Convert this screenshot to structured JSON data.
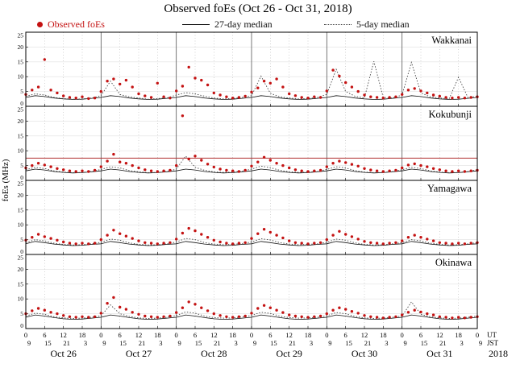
{
  "title": "Observed foEs (Oct 26 - Oct 31, 2018)",
  "legend": {
    "observed": "Observed foEs",
    "median27": "27-day median",
    "median5": "5-day median"
  },
  "colors": {
    "observed": "#c41212",
    "median27": "#111111",
    "median5": "#444444",
    "threshold": "#b03030",
    "grid": "#e0e0e0",
    "dayline": "#555555",
    "subline": "#aaaaaa"
  },
  "y_axis": {
    "label": "foEs (MHz)",
    "ticks": [
      0,
      5,
      10,
      15,
      20,
      25
    ],
    "max": 25
  },
  "x_axis": {
    "hours_total": 144,
    "tick_step_hours": 6,
    "ut_tick_labels": [
      "0",
      "6",
      "12",
      "18",
      "0",
      "6",
      "12",
      "18",
      "0",
      "6",
      "12",
      "18",
      "0",
      "6",
      "12",
      "18",
      "0",
      "6",
      "12",
      "18",
      "0",
      "6",
      "12",
      "18",
      "0"
    ],
    "jst_tick_labels": [
      "9",
      "15",
      "21",
      "3",
      "9",
      "15",
      "21",
      "3",
      "9",
      "15",
      "21",
      "3",
      "9",
      "15",
      "21",
      "3",
      "9",
      "15",
      "21",
      "3",
      "9",
      "15",
      "21",
      "3",
      "9"
    ],
    "day_labels": [
      "Oct 26",
      "Oct 27",
      "Oct 28",
      "Oct 29",
      "Oct 30",
      "Oct 31"
    ],
    "right_labels": [
      "UT",
      "JST"
    ],
    "year": "2018"
  },
  "chart_data": {
    "type": "scatter",
    "units": "MHz",
    "ylim": [
      0,
      25
    ],
    "x_units": "hours UT from Oct 26 2018 00:00",
    "stations": [
      {
        "name": "Wakkanai",
        "observed": {
          "start": 0,
          "step": 2,
          "values": [
            4.0,
            5.5,
            6.5,
            15.8,
            5.5,
            4.5,
            3.5,
            3.0,
            2.8,
            3.2,
            2.6,
            2.8,
            5.0,
            8.5,
            9.2,
            7.5,
            8.8,
            6.5,
            4.2,
            3.5,
            3.0,
            7.8,
            3.2,
            2.8,
            5.2,
            6.8,
            13.2,
            9.5,
            8.8,
            7.2,
            4.5,
            3.8,
            3.2,
            2.8,
            3.0,
            3.4,
            4.8,
            6.2,
            8.5,
            7.8,
            9.2,
            6.5,
            4.2,
            3.6,
            3.0,
            2.8,
            3.2,
            3.0,
            5.2,
            12.2,
            10.2,
            8.0,
            6.5,
            5.0,
            3.8,
            3.2,
            3.0,
            2.8,
            3.0,
            3.2,
            4.0,
            5.5,
            6.0,
            5.2,
            4.5,
            3.8,
            3.4,
            3.0,
            2.8,
            3.0,
            2.8,
            3.0,
            3.2
          ]
        },
        "median27": {
          "start": 0,
          "step": 3,
          "values": [
            3.0,
            3.6,
            3.3,
            2.8,
            2.5,
            2.3,
            2.4,
            2.7,
            3.0,
            3.6,
            3.3,
            2.8,
            2.5,
            2.3,
            2.4,
            2.7,
            3.0,
            3.6,
            3.3,
            2.8,
            2.5,
            2.3,
            2.4,
            2.7,
            3.0,
            3.6,
            3.3,
            2.8,
            2.5,
            2.3,
            2.4,
            2.7,
            3.0,
            3.6,
            3.3,
            2.8,
            2.5,
            2.3,
            2.4,
            2.7,
            3.0,
            3.6,
            3.3,
            2.8,
            2.5,
            2.3,
            2.4,
            2.7,
            3.0
          ]
        },
        "median5": {
          "start": 0,
          "step": 3,
          "values": [
            3.4,
            4.2,
            3.8,
            3.0,
            2.6,
            2.4,
            2.5,
            2.8,
            3.6,
            8.5,
            4.0,
            3.2,
            2.8,
            2.4,
            2.6,
            2.8,
            3.8,
            4.6,
            4.2,
            3.4,
            2.8,
            2.5,
            2.6,
            3.0,
            3.6,
            10.2,
            4.4,
            3.2,
            2.8,
            2.5,
            2.6,
            3.0,
            4.0,
            12.5,
            5.0,
            3.4,
            2.8,
            15.2,
            3.0,
            2.8,
            3.8,
            14.8,
            4.5,
            3.2,
            2.8,
            2.5,
            9.8,
            3.0,
            3.4
          ]
        }
      },
      {
        "name": "Kokubunji",
        "threshold": 7.5,
        "observed": {
          "start": 0,
          "step": 2,
          "values": [
            4.2,
            5.0,
            5.8,
            5.2,
            4.6,
            4.0,
            3.6,
            3.2,
            3.0,
            3.2,
            3.0,
            3.4,
            4.6,
            6.5,
            8.8,
            6.2,
            5.8,
            5.0,
            4.2,
            3.6,
            3.2,
            3.0,
            3.2,
            3.4,
            5.0,
            21.8,
            7.2,
            8.2,
            6.8,
            5.5,
            4.5,
            3.8,
            3.4,
            3.2,
            3.0,
            3.4,
            4.8,
            6.2,
            7.8,
            6.8,
            5.8,
            5.0,
            4.2,
            3.6,
            3.2,
            3.0,
            3.2,
            3.4,
            4.6,
            5.8,
            6.5,
            6.0,
            5.4,
            4.8,
            4.0,
            3.5,
            3.2,
            3.0,
            3.2,
            3.4,
            4.2,
            5.2,
            5.6,
            5.0,
            4.6,
            4.0,
            3.6,
            3.2,
            3.0,
            3.2,
            3.0,
            3.2,
            3.4
          ]
        },
        "median27": {
          "start": 0,
          "step": 3,
          "values": [
            3.2,
            3.8,
            3.5,
            3.0,
            2.7,
            2.5,
            2.6,
            2.9,
            3.2,
            3.8,
            3.5,
            3.0,
            2.7,
            2.5,
            2.6,
            2.9,
            3.2,
            3.8,
            3.5,
            3.0,
            2.7,
            2.5,
            2.6,
            2.9,
            3.2,
            3.8,
            3.5,
            3.0,
            2.7,
            2.5,
            2.6,
            2.9,
            3.2,
            3.8,
            3.5,
            3.0,
            2.7,
            2.5,
            2.6,
            2.9,
            3.2,
            3.8,
            3.5,
            3.0,
            2.7,
            2.5,
            2.6,
            2.9,
            3.2
          ]
        },
        "median5": {
          "start": 0,
          "step": 3,
          "values": [
            3.6,
            4.4,
            4.0,
            3.2,
            2.8,
            2.6,
            2.7,
            3.0,
            3.7,
            4.6,
            4.2,
            3.3,
            2.9,
            2.6,
            2.7,
            3.0,
            3.8,
            8.2,
            4.4,
            3.4,
            2.9,
            2.7,
            2.8,
            3.1,
            3.8,
            4.8,
            4.3,
            3.4,
            2.9,
            2.7,
            2.8,
            3.0,
            3.7,
            4.6,
            4.2,
            3.3,
            2.8,
            2.6,
            2.7,
            3.0,
            3.6,
            4.4,
            4.0,
            3.2,
            2.8,
            2.6,
            2.7,
            3.0,
            3.6
          ]
        }
      },
      {
        "name": "Yamagawa",
        "observed": {
          "start": 0,
          "step": 2,
          "values": [
            4.8,
            5.8,
            6.8,
            6.0,
            5.4,
            4.8,
            4.2,
            3.8,
            3.6,
            3.8,
            3.6,
            3.8,
            5.0,
            6.5,
            8.2,
            7.0,
            6.2,
            5.4,
            4.6,
            4.0,
            3.8,
            3.6,
            3.8,
            4.0,
            5.2,
            7.2,
            8.8,
            8.0,
            6.8,
            5.8,
            4.8,
            4.2,
            3.8,
            3.6,
            3.8,
            4.0,
            5.4,
            7.0,
            8.5,
            7.5,
            6.5,
            5.6,
            4.6,
            4.0,
            3.8,
            3.6,
            3.8,
            4.0,
            5.0,
            6.5,
            7.8,
            6.8,
            6.0,
            5.2,
            4.4,
            4.0,
            3.8,
            3.6,
            3.8,
            4.0,
            4.6,
            5.8,
            6.5,
            5.8,
            5.2,
            4.6,
            4.0,
            3.8,
            3.6,
            3.8,
            3.6,
            3.8,
            4.0
          ]
        },
        "median27": {
          "start": 0,
          "step": 3,
          "values": [
            3.6,
            4.4,
            4.0,
            3.5,
            3.2,
            3.0,
            3.1,
            3.4,
            3.6,
            4.4,
            4.0,
            3.5,
            3.2,
            3.0,
            3.1,
            3.4,
            3.6,
            4.4,
            4.0,
            3.5,
            3.2,
            3.0,
            3.1,
            3.4,
            3.6,
            4.4,
            4.0,
            3.5,
            3.2,
            3.0,
            3.1,
            3.4,
            3.6,
            4.4,
            4.0,
            3.5,
            3.2,
            3.0,
            3.1,
            3.4,
            3.6,
            4.4,
            4.0,
            3.5,
            3.2,
            3.0,
            3.1,
            3.4,
            3.6
          ]
        },
        "median5": {
          "start": 0,
          "step": 3,
          "values": [
            4.0,
            5.0,
            4.6,
            3.8,
            3.4,
            3.2,
            3.3,
            3.6,
            4.1,
            5.2,
            4.8,
            3.9,
            3.4,
            3.2,
            3.3,
            3.6,
            4.2,
            5.4,
            5.0,
            4.0,
            3.5,
            3.3,
            3.4,
            3.7,
            4.2,
            5.3,
            4.9,
            4.0,
            3.5,
            3.3,
            3.4,
            3.6,
            4.1,
            5.2,
            4.8,
            3.9,
            3.4,
            3.2,
            3.3,
            3.6,
            4.0,
            5.0,
            4.6,
            3.8,
            3.4,
            3.2,
            3.3,
            3.6,
            4.0
          ]
        }
      },
      {
        "name": "Okinawa",
        "observed": {
          "start": 0,
          "step": 2,
          "values": [
            5.0,
            6.0,
            6.8,
            6.2,
            5.5,
            5.0,
            4.4,
            4.0,
            3.8,
            4.0,
            3.8,
            4.0,
            5.2,
            8.5,
            10.5,
            7.2,
            6.5,
            5.5,
            4.8,
            4.2,
            4.0,
            3.8,
            4.0,
            4.2,
            5.4,
            7.0,
            9.0,
            8.2,
            7.0,
            6.0,
            5.0,
            4.4,
            4.0,
            3.8,
            4.0,
            4.2,
            5.2,
            6.8,
            7.8,
            7.0,
            6.2,
            5.4,
            4.6,
            4.2,
            4.0,
            3.8,
            4.0,
            4.2,
            5.0,
            6.2,
            7.0,
            6.5,
            5.8,
            5.2,
            4.4,
            4.0,
            3.8,
            3.6,
            3.8,
            4.0,
            4.6,
            5.5,
            6.2,
            5.6,
            5.0,
            4.6,
            4.0,
            3.8,
            3.6,
            3.8,
            3.6,
            3.8,
            4.0
          ]
        },
        "median27": {
          "start": 0,
          "step": 3,
          "values": [
            3.8,
            4.6,
            4.2,
            3.7,
            3.3,
            3.1,
            3.2,
            3.5,
            3.8,
            4.6,
            4.2,
            3.7,
            3.3,
            3.1,
            3.2,
            3.5,
            3.8,
            4.6,
            4.2,
            3.7,
            3.3,
            3.1,
            3.2,
            3.5,
            3.8,
            4.6,
            4.2,
            3.7,
            3.3,
            3.1,
            3.2,
            3.5,
            3.8,
            4.6,
            4.2,
            3.7,
            3.3,
            3.1,
            3.2,
            3.5,
            3.8,
            4.6,
            4.2,
            3.7,
            3.3,
            3.1,
            3.2,
            3.5,
            3.8
          ]
        },
        "median5": {
          "start": 0,
          "step": 3,
          "values": [
            4.2,
            5.2,
            4.8,
            4.0,
            3.6,
            3.4,
            3.5,
            3.8,
            4.3,
            8.0,
            5.0,
            4.1,
            3.6,
            3.4,
            3.5,
            3.8,
            4.4,
            5.6,
            5.2,
            4.2,
            3.7,
            3.5,
            3.6,
            3.9,
            4.4,
            5.5,
            5.1,
            4.2,
            3.7,
            3.5,
            3.6,
            3.8,
            4.3,
            5.4,
            5.0,
            4.1,
            3.6,
            3.4,
            3.5,
            3.8,
            4.2,
            9.0,
            4.8,
            4.0,
            3.6,
            3.4,
            3.5,
            3.8,
            4.2
          ]
        }
      }
    ]
  }
}
